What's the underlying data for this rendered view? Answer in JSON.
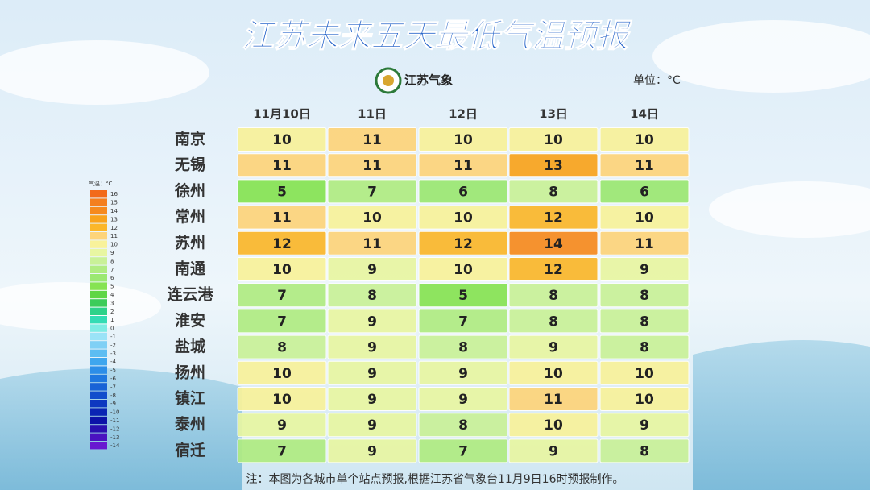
{
  "header": {
    "title": "江苏未来五天最低气温预报",
    "logo": "江苏气象",
    "unit": "单位：°C"
  },
  "table": {
    "columns": [
      "11月10日",
      "11日",
      "12日",
      "13日",
      "14日"
    ],
    "rows": [
      [
        "南京",
        10,
        11,
        10,
        10,
        10
      ],
      [
        "无锡",
        11,
        11,
        11,
        13,
        11
      ],
      [
        "徐州",
        5,
        7,
        6,
        8,
        6
      ],
      [
        "常州",
        11,
        10,
        10,
        12,
        10
      ],
      [
        "苏州",
        12,
        11,
        12,
        14,
        11
      ],
      [
        "南通",
        10,
        9,
        10,
        12,
        9
      ],
      [
        "连云港",
        7,
        8,
        5,
        8,
        8
      ],
      [
        "淮安",
        7,
        9,
        7,
        8,
        8
      ],
      [
        "盐城",
        8,
        9,
        8,
        9,
        8
      ],
      [
        "扬州",
        10,
        9,
        9,
        10,
        10
      ],
      [
        "镇江",
        10,
        9,
        9,
        11,
        10
      ],
      [
        "泰州",
        9,
        9,
        8,
        10,
        9
      ],
      [
        "宿迁",
        7,
        9,
        7,
        9,
        8
      ]
    ]
  },
  "legend": {
    "title": "气温：°C",
    "items": [
      {
        "value": 16,
        "color": "#f26a1b"
      },
      {
        "value": 15,
        "color": "#f47f1f"
      },
      {
        "value": 14,
        "color": "#f68a1e"
      },
      {
        "value": 13,
        "color": "#f9a31c"
      },
      {
        "value": 12,
        "color": "#fbb72a"
      },
      {
        "value": 11,
        "color": "#fdd47a"
      },
      {
        "value": 10,
        "color": "#f8f29a"
      },
      {
        "value": 9,
        "color": "#e8f6a2"
      },
      {
        "value": 8,
        "color": "#c9f198"
      },
      {
        "value": 7,
        "color": "#b0ec82"
      },
      {
        "value": 6,
        "color": "#9be872"
      },
      {
        "value": 5,
        "color": "#86e352"
      },
      {
        "value": 4,
        "color": "#5fd646"
      },
      {
        "value": 3,
        "color": "#3ccc5a"
      },
      {
        "value": 2,
        "color": "#2ed28a"
      },
      {
        "value": 1,
        "color": "#34dcb4"
      },
      {
        "value": 0,
        "color": "#7eece4"
      },
      {
        "value": -1,
        "color": "#9ae3f7"
      },
      {
        "value": -2,
        "color": "#7fd0f5"
      },
      {
        "value": -3,
        "color": "#5cbdf2"
      },
      {
        "value": -4,
        "color": "#3ea6ee"
      },
      {
        "value": -5,
        "color": "#2c8ee8"
      },
      {
        "value": -6,
        "color": "#1f78e0"
      },
      {
        "value": -7,
        "color": "#1862d6"
      },
      {
        "value": -8,
        "color": "#124dcc"
      },
      {
        "value": -9,
        "color": "#0d38c0"
      },
      {
        "value": -10,
        "color": "#0a24b4"
      },
      {
        "value": -11,
        "color": "#0c12a8"
      },
      {
        "value": -12,
        "color": "#2a10b0"
      },
      {
        "value": -13,
        "color": "#4a12c0"
      },
      {
        "value": -14,
        "color": "#6818d0"
      }
    ]
  },
  "note": "注：本图为各城市单个站点预报,根据江苏省气象台11月9日16时预报制作。"
}
